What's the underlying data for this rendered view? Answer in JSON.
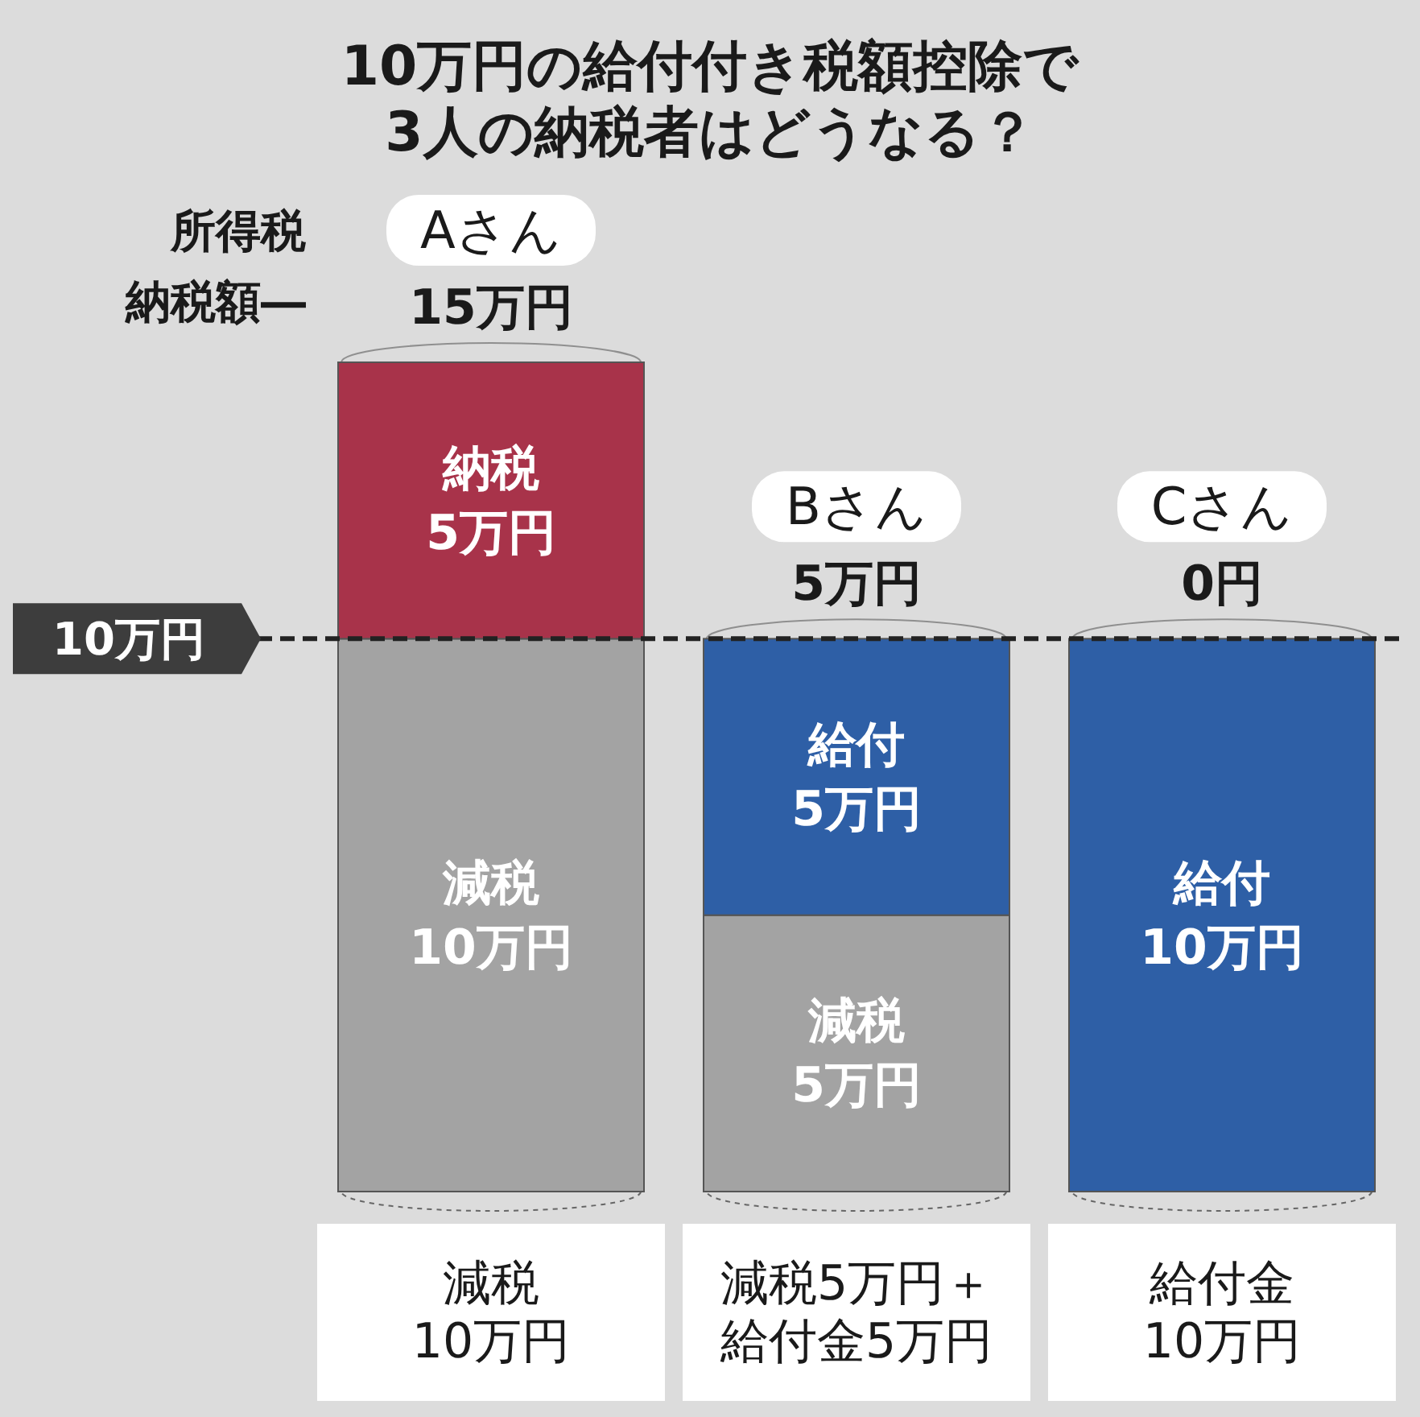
{
  "chart_data": {
    "type": "bar",
    "stacked": true,
    "title": "10万円の給付付き税額控除で\n3人の納税者はどうなる？",
    "categories": [
      "Aさん",
      "Bさん",
      "Cさん"
    ],
    "series": [
      {
        "name": "減税",
        "color": "#a3a3a3",
        "values": [
          10,
          5,
          null
        ],
        "value_labels": [
          "10万円",
          "5万円",
          null
        ]
      },
      {
        "name": "給付",
        "color": "#2e5fa6",
        "values": [
          null,
          5,
          10
        ],
        "value_labels": [
          null,
          "5万円",
          "10万円"
        ]
      },
      {
        "name": "納税",
        "color": "#a8334a",
        "values": [
          5,
          null,
          null
        ],
        "value_labels": [
          "5万円",
          null,
          null
        ]
      }
    ],
    "ref_lines": [
      {
        "axis": "y",
        "value": 10,
        "label": "10万円",
        "line_style": "dashed",
        "color": "#222222"
      }
    ],
    "annotations": [
      "所得税",
      "納税額―",
      {
        "text": "15万円",
        "x": "Aさん",
        "y": 15
      },
      {
        "text": "5万円",
        "x": "Bさん",
        "y": 10
      },
      {
        "text": "0円",
        "x": "Cさん",
        "y": 10
      },
      "減税10万円",
      "減税5万円＋給付金5万円",
      "給付金10万円"
    ]
  }
}
